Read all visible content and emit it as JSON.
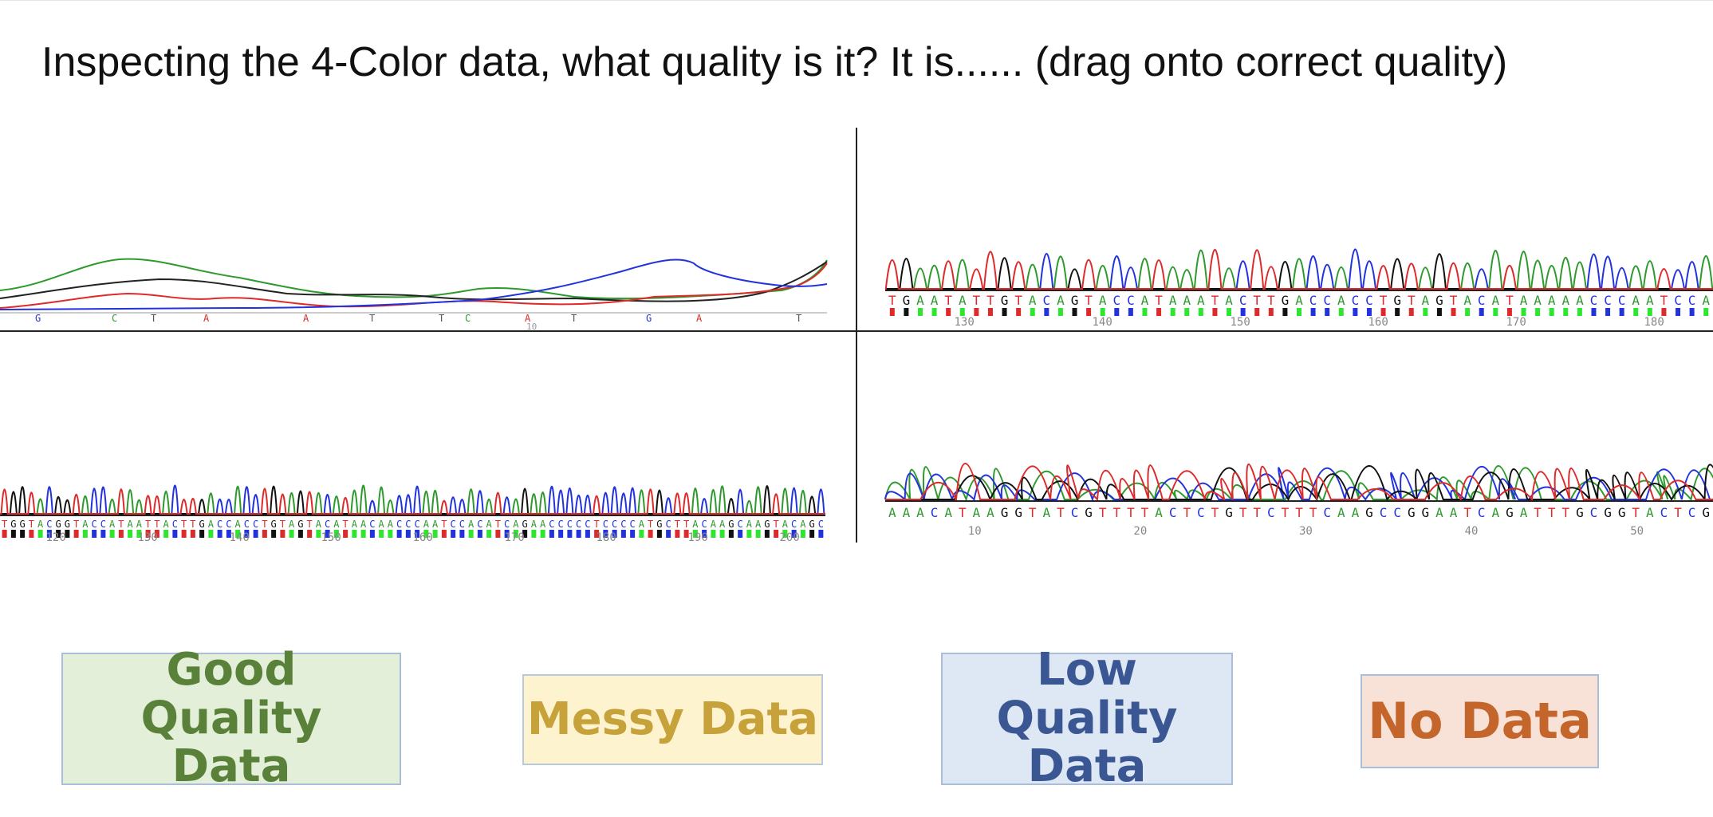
{
  "question": "Inspecting the 4-Color data, what quality is it? It is...... (drag onto correct quality)",
  "colors": {
    "A": "#2e9a2e",
    "C": "#2233dd",
    "G": "#111111",
    "T": "#dd2a2a",
    "base_A": "#2ee62e"
  },
  "panels": {
    "top_left": {
      "bases": [
        "G",
        "C",
        "T",
        "A",
        "A",
        "T",
        "T",
        "C",
        "A",
        "T",
        "G",
        "A",
        "T"
      ],
      "positions": [
        "10"
      ]
    },
    "top_right": {
      "sequence": "TGAATATTGTACAGTACCATAAATACTTGACCACCTGTAGTACATAAAAACCCAATCCA",
      "positions": [
        "130",
        "140",
        "150",
        "160",
        "170",
        "180"
      ]
    },
    "bottom_left": {
      "sequence": "TGGTACGGTACCATAATTACTTGACCACCTGTAGTACATAACAACCCAATCCACATCAGAACCCCCTCCCCATGCTTACAAGCAAGTACAGC",
      "positions": [
        "120",
        "130",
        "140",
        "150",
        "160",
        "170",
        "180",
        "190",
        "200"
      ]
    },
    "bottom_right": {
      "sequence": "AAACATAAGGTATCGTTTTACTCTGTTCTTTCAAGCCGGAATCAGATTTGCGGTACTCG",
      "positions": [
        "10",
        "20",
        "30",
        "40",
        "50"
      ]
    }
  },
  "answers": {
    "good": "Good Quality Data",
    "messy": "Messy Data",
    "low": "Low Quality Data",
    "none": "No Data"
  }
}
